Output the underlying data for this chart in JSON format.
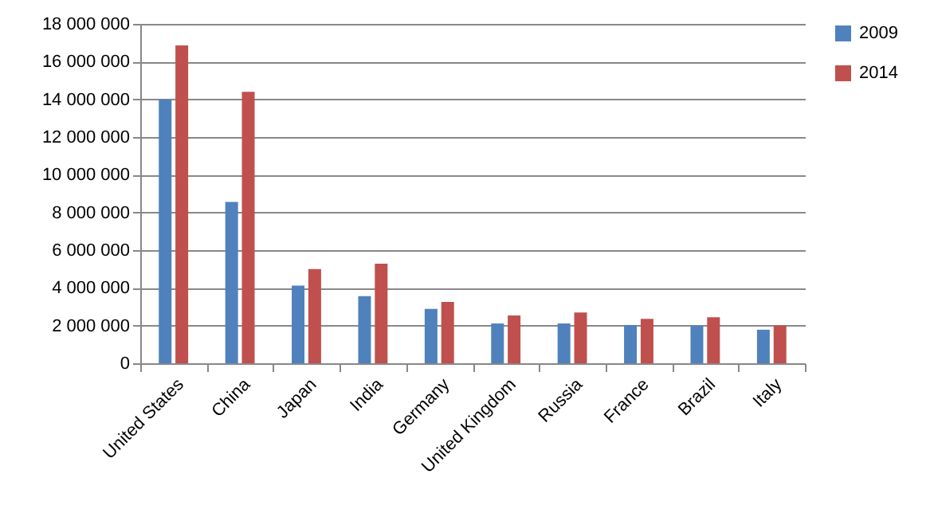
{
  "chart_data": {
    "type": "bar",
    "categories": [
      "United States",
      "China",
      "Japan",
      "India",
      "Germany",
      "United Kingdom",
      "Russia",
      "France",
      "Brazil",
      "Italy"
    ],
    "series": [
      {
        "name": "2009",
        "color": "#4f81bd",
        "values": [
          14000000,
          8560000,
          4120000,
          3560000,
          2880000,
          2110000,
          2110000,
          2030000,
          2000000,
          1780000
        ]
      },
      {
        "name": "2014",
        "color": "#c0504d",
        "values": [
          16860000,
          14400000,
          5000000,
          5280000,
          3250000,
          2530000,
          2690000,
          2360000,
          2440000,
          2000000
        ]
      }
    ],
    "ylim": [
      0,
      18000000
    ],
    "yticks": [
      {
        "value": 0,
        "label": "0"
      },
      {
        "value": 2000000,
        "label": "2 000 000"
      },
      {
        "value": 4000000,
        "label": "4 000 000"
      },
      {
        "value": 6000000,
        "label": "6 000 000"
      },
      {
        "value": 8000000,
        "label": "8 000 000"
      },
      {
        "value": 10000000,
        "label": "10 000 000"
      },
      {
        "value": 12000000,
        "label": "12 000 000"
      },
      {
        "value": 14000000,
        "label": "14 000 000"
      },
      {
        "value": 16000000,
        "label": "16 000 000"
      },
      {
        "value": 18000000,
        "label": "18 000 000"
      }
    ],
    "grid": "y",
    "legend": "right"
  }
}
